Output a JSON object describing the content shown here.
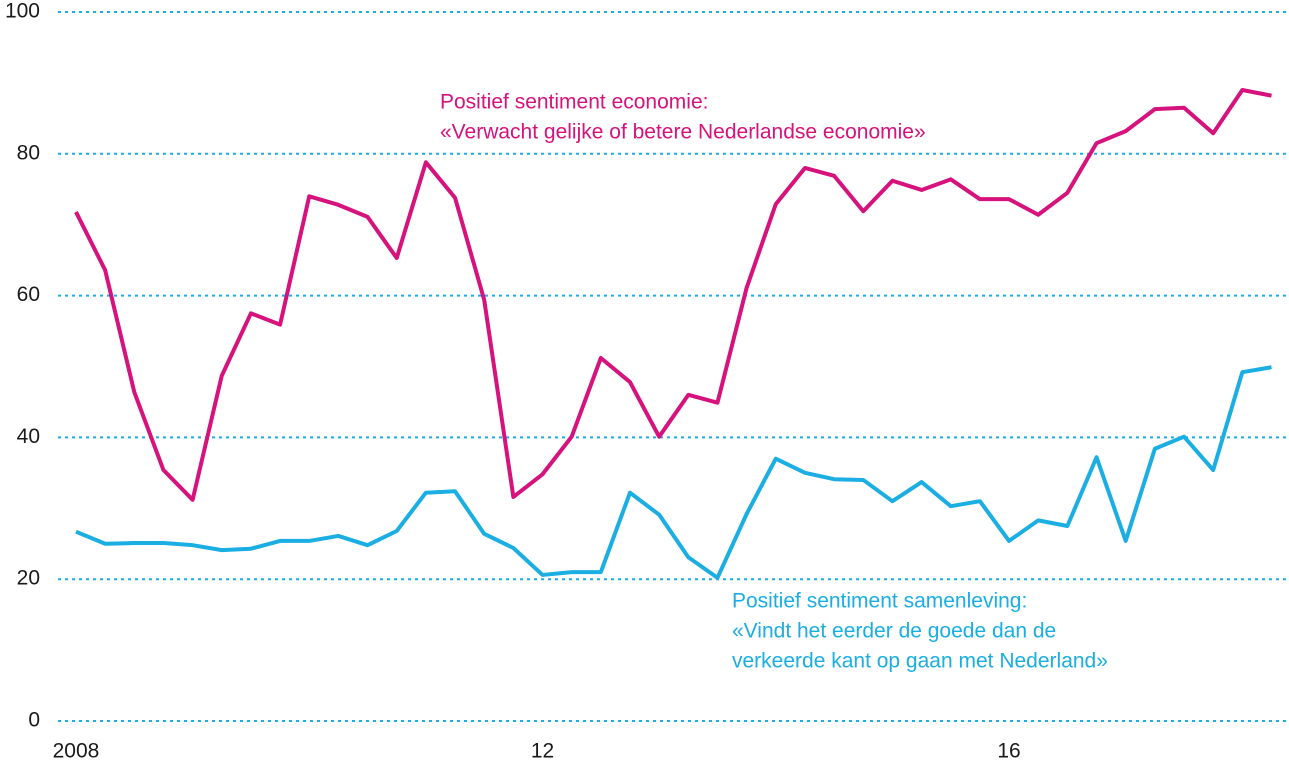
{
  "chart_data": {
    "type": "line",
    "x": [
      2008,
      2008.25,
      2008.5,
      2008.75,
      2009,
      2009.25,
      2009.5,
      2009.75,
      2010,
      2010.25,
      2010.5,
      2010.75,
      2011,
      2011.25,
      2011.5,
      2011.75,
      2012,
      2012.25,
      2012.5,
      2012.75,
      2013,
      2013.25,
      2013.5,
      2013.75,
      2014,
      2014.25,
      2014.5,
      2014.75,
      2015,
      2015.25,
      2015.5,
      2015.75,
      2016,
      2016.25,
      2016.5,
      2016.75,
      2017,
      2017.25,
      2017.5,
      2017.75,
      2018,
      2018.25
    ],
    "series": [
      {
        "name": "Positief sentiment economie:",
        "label_lines": [
          "«Verwacht gelijke of betere Nederlandse economie»"
        ],
        "color": "#d6127c",
        "values": [
          71.8,
          63.6,
          46.4,
          35.4,
          31.2,
          48.7,
          57.5,
          55.9,
          74.0,
          72.8,
          71.1,
          65.3,
          78.8,
          73.8,
          59.4,
          31.6,
          34.8,
          40.1,
          51.2,
          47.8,
          40.1,
          46.0,
          44.9,
          61.1,
          72.9,
          78.0,
          76.9,
          71.9,
          76.2,
          74.9,
          76.4,
          73.6,
          73.6,
          71.4,
          74.5,
          81.5,
          83.2,
          86.3,
          86.5,
          82.9,
          89.0,
          88.2
        ]
      },
      {
        "name": "Positief sentiment samenleving:",
        "label_lines": [
          "«Vindt het eerder de goede dan de",
          "verkeerde kant op gaan met Nederland»"
        ],
        "color": "#1aaee3",
        "values": [
          26.7,
          25.0,
          25.1,
          25.1,
          24.8,
          24.1,
          24.3,
          25.4,
          25.4,
          26.1,
          24.8,
          26.8,
          32.2,
          32.4,
          26.4,
          24.4,
          20.6,
          21.0,
          21.0,
          32.2,
          29.1,
          23.1,
          20.2,
          29.2,
          37.0,
          35.0,
          34.1,
          34.0,
          31.0,
          33.7,
          30.3,
          31.0,
          25.4,
          28.3,
          27.5,
          37.2,
          25.4,
          38.4,
          40.1,
          35.4,
          49.2,
          49.9
        ]
      }
    ],
    "xlim": [
      2007.846,
      2018.4
    ],
    "xticks": [
      {
        "value": 2008,
        "label": "2008"
      },
      {
        "value": 2012,
        "label": "12"
      },
      {
        "value": 2016,
        "label": "16"
      }
    ],
    "ylim": [
      0,
      100
    ],
    "yticks": [
      0,
      20,
      40,
      60,
      80,
      100
    ],
    "grid": true,
    "grid_color": "#1aaee3"
  }
}
